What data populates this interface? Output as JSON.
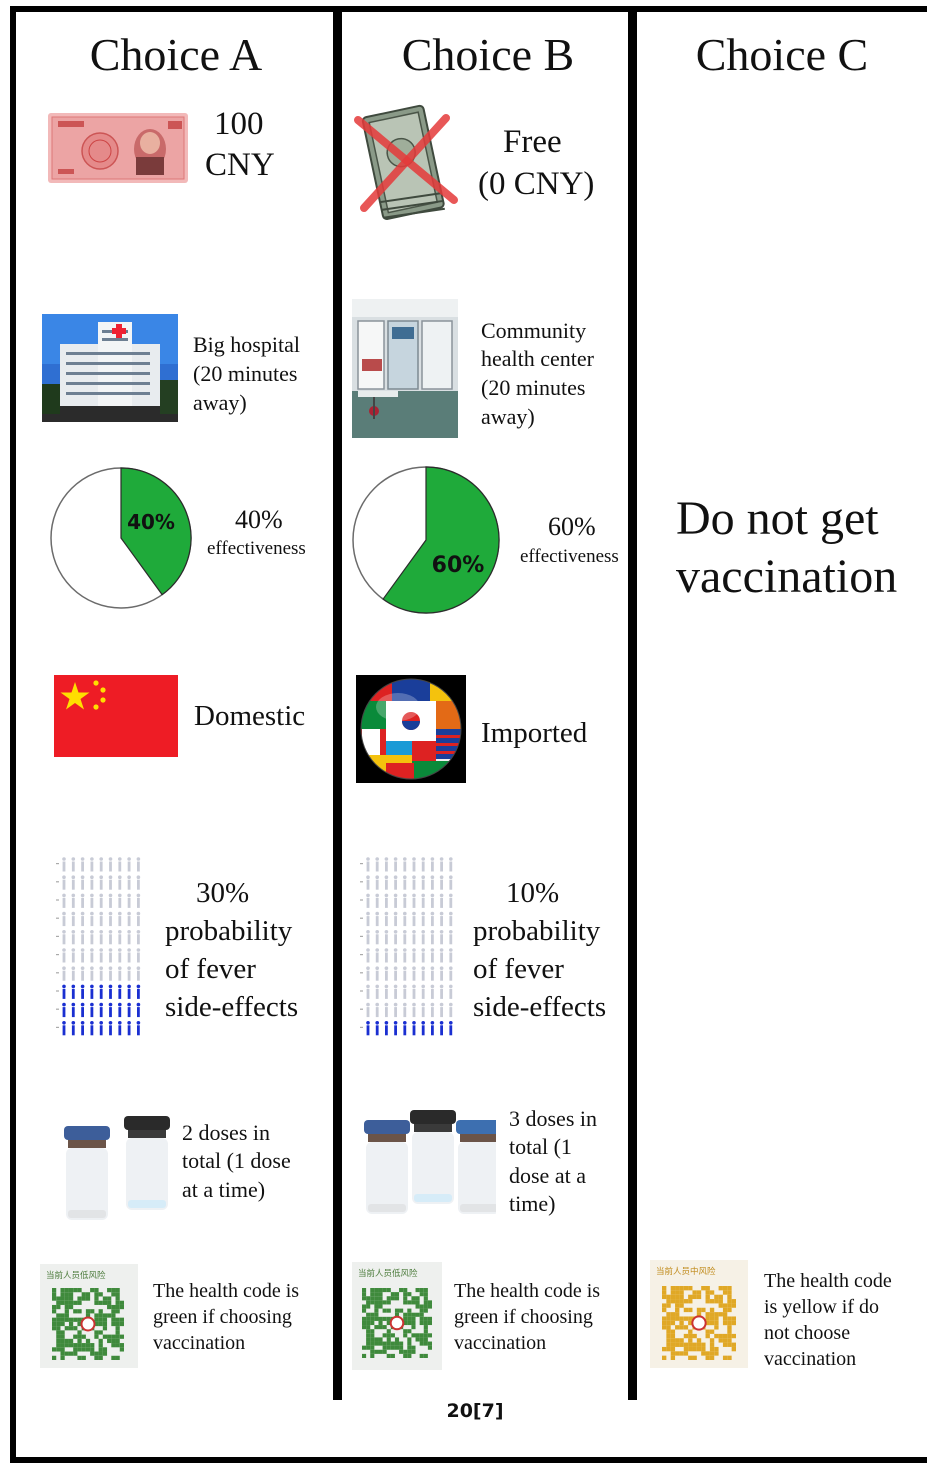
{
  "columns": [
    {
      "title": "Choice A",
      "price": "100 CNY",
      "price_line1": "100",
      "price_line2": "CNY",
      "location_lines": [
        "Big hospital",
        "(20 minutes",
        "away)"
      ],
      "effectiveness_pct": 40,
      "effectiveness_label": "40%",
      "effectiveness_line1": "40%",
      "effectiveness_line2": "effectiveness",
      "origin": "Domestic",
      "side_effect_lines": [
        "30%",
        "probability",
        "of fever",
        "side-effects"
      ],
      "side_effect_fraction": 0.3,
      "dose_count": 2,
      "dose_lines": [
        "2 doses in",
        "total (1 dose",
        "at a time)"
      ],
      "health_code_header": "当前人员低风险",
      "health_code_color": "green",
      "health_code_lines": [
        "The health code is",
        "green if choosing",
        "vaccination"
      ]
    },
    {
      "title": "Choice B",
      "price_line1": "Free",
      "price_line2": "(0 CNY)",
      "location_lines": [
        "Community",
        "health center",
        "(20 minutes",
        "away)"
      ],
      "effectiveness_pct": 60,
      "effectiveness_label": "60%",
      "effectiveness_line1": "60%",
      "effectiveness_line2": "effectiveness",
      "origin": "Imported",
      "side_effect_lines": [
        "10%",
        "probability",
        "of fever",
        "side-effects"
      ],
      "side_effect_fraction": 0.1,
      "dose_count": 3,
      "dose_lines": [
        "3 doses in",
        "total  (1",
        "dose at a",
        "time)"
      ],
      "health_code_header": "当前人员低风险",
      "health_code_color": "green",
      "health_code_lines": [
        "The health code is",
        "green if choosing",
        "vaccination"
      ]
    },
    {
      "title": "Choice C",
      "no_vaccine_lines": [
        "Do not get",
        "vaccination"
      ],
      "health_code_header": "当前人员中风险",
      "health_code_color": "yellow",
      "health_code_lines": [
        "The health code",
        "is yellow if do",
        "not choose",
        "vaccination"
      ]
    }
  ],
  "colors": {
    "pie_green": "#1faa3a",
    "flag_red": "#ee1c25",
    "flag_star": "#ffde00",
    "person_active": "#1a2fd1",
    "person_inactive": "#c8cbd6",
    "qr_green": "#3f8a3c",
    "qr_yellow": "#e0a826"
  },
  "page_label": "20[7]"
}
